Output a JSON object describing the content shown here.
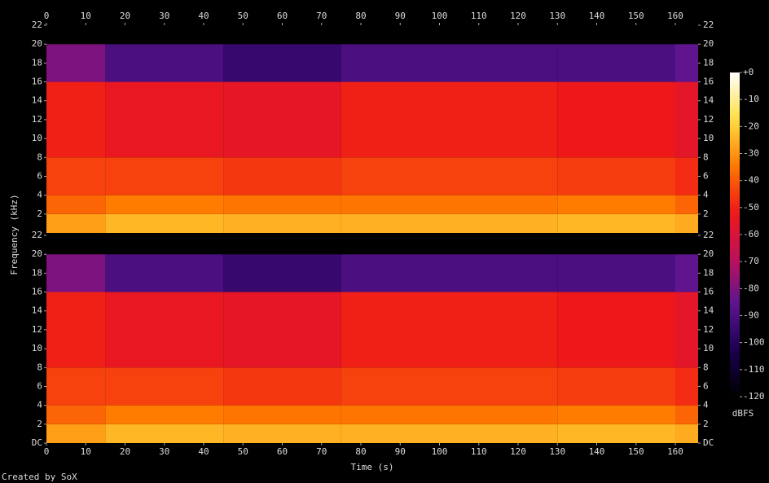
{
  "chart_data": {
    "type": "spectrogram",
    "x_label": "Time (s)",
    "y_label": "Frequency (kHz)",
    "footer": "Created by SoX",
    "xlim": [
      0,
      165.8
    ],
    "xticks": [
      0,
      10,
      20,
      30,
      40,
      50,
      60,
      70,
      80,
      90,
      100,
      110,
      120,
      130,
      140,
      150,
      160
    ],
    "colorbar_label": "dBFS",
    "clim": [
      -120,
      0
    ],
    "cticks": [
      {
        "value": 0,
        "label": "+0"
      },
      -10,
      -20,
      -30,
      -40,
      -50,
      -60,
      -70,
      -80,
      -90,
      -100,
      -110,
      -120
    ],
    "colormap": [
      "#000000",
      "#1a0050",
      "#5c1490",
      "#c0105a",
      "#f01818",
      "#ff7a00",
      "#ffe040",
      "#ffffff"
    ],
    "x": [
      0,
      15,
      45,
      75,
      130,
      160,
      165.8
    ],
    "channels": [
      {
        "ylim": [
          0,
          22
        ],
        "yticks": [
          2,
          4,
          6,
          8,
          10,
          12,
          14,
          16,
          18,
          20,
          22
        ],
        "y": [
          0,
          2,
          4,
          8,
          16,
          20,
          22
        ],
        "values": [
          [
            -28,
            -24,
            -25,
            -25,
            -24,
            -26
          ],
          [
            -38,
            -34,
            -35,
            -35,
            -34,
            -38
          ],
          [
            -44,
            -44,
            -46,
            -44,
            -45,
            -48
          ],
          [
            -50,
            -54,
            -55,
            -50,
            -52,
            -56
          ],
          [
            -80,
            -90,
            -95,
            -90,
            -90,
            -85
          ],
          [
            -120,
            -120,
            -120,
            -120,
            -120,
            -120
          ]
        ]
      },
      {
        "ylim": [
          0,
          22
        ],
        "yticks": [
          {
            "value": 0,
            "label": "DC"
          },
          2,
          4,
          6,
          8,
          10,
          12,
          14,
          16,
          18,
          20,
          22
        ],
        "y": [
          0,
          2,
          4,
          8,
          16,
          20,
          22
        ],
        "values": [
          [
            -28,
            -24,
            -25,
            -25,
            -24,
            -26
          ],
          [
            -38,
            -34,
            -35,
            -35,
            -34,
            -38
          ],
          [
            -44,
            -44,
            -46,
            -44,
            -45,
            -48
          ],
          [
            -50,
            -54,
            -55,
            -50,
            -52,
            -56
          ],
          [
            -80,
            -90,
            -95,
            -90,
            -90,
            -85
          ],
          [
            -120,
            -120,
            -120,
            -120,
            -120,
            -120
          ]
        ]
      }
    ]
  }
}
